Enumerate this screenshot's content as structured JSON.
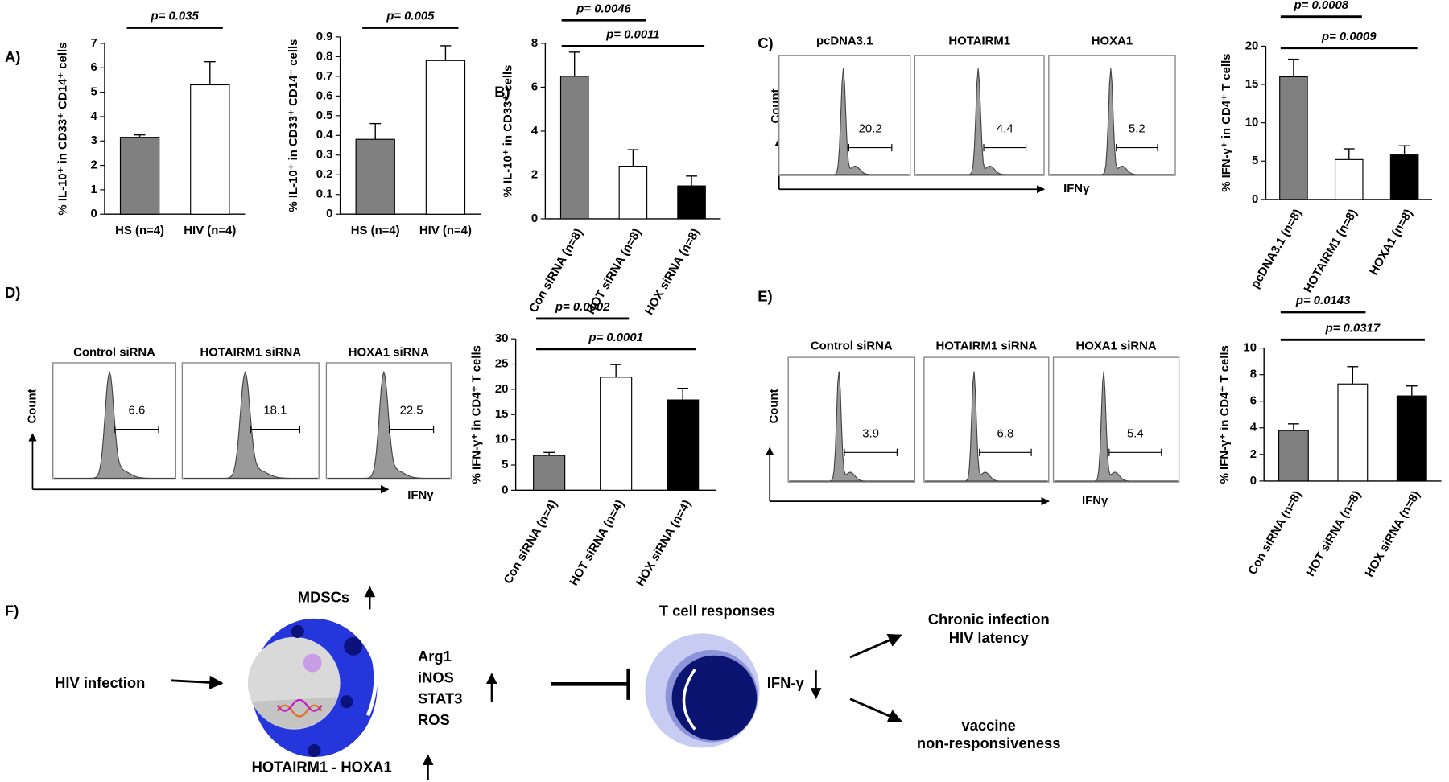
{
  "chart_data": [
    {
      "type": "bar",
      "panel": "A)",
      "ylabel": "% IL-10⁺ in CD33⁺ CD14⁺ cells",
      "categories": [
        "HS (n=4)",
        "HIV (n=4)"
      ],
      "values": [
        3.15,
        5.3
      ],
      "errors": [
        0.1,
        0.95
      ],
      "colors": [
        "#808080",
        "#ffffff"
      ],
      "ylim": [
        0,
        7
      ],
      "yticks": [
        0,
        1,
        2,
        3,
        4,
        5,
        6,
        7
      ],
      "annotations": [
        "p= 0.035"
      ]
    },
    {
      "type": "bar",
      "ylabel": "% IL-10⁺ in CD33⁺ CD14⁻ cells",
      "categories": [
        "HS (n=4)",
        "HIV (n=4)"
      ],
      "values": [
        0.38,
        0.78
      ],
      "errors": [
        0.08,
        0.075
      ],
      "colors": [
        "#808080",
        "#ffffff"
      ],
      "ylim": [
        0,
        0.9
      ],
      "yticks": [
        0,
        0.1,
        0.2,
        0.3,
        0.4,
        0.5,
        0.6,
        0.7,
        0.8,
        0.9
      ],
      "annotations": [
        "p= 0.005"
      ]
    },
    {
      "type": "bar",
      "panel": "B)",
      "ylabel": "% IL-10⁺ in CD33⁺ cells",
      "categories": [
        "Con siRNA (n=8)",
        "HOT siRNA (n=8)",
        "HOX siRNA (n=8)"
      ],
      "values": [
        6.5,
        2.4,
        1.5
      ],
      "errors": [
        1.1,
        0.75,
        0.45
      ],
      "colors": [
        "#808080",
        "#ffffff",
        "#000000"
      ],
      "ylim": [
        0,
        8
      ],
      "yticks": [
        0,
        2,
        4,
        6,
        8
      ],
      "annotations": [
        "p= 0.0046",
        "p= 0.0011"
      ]
    },
    {
      "type": "bar",
      "ylabel": "% IFN-γ⁺ in CD4⁺ T cells",
      "categories": [
        "pcDNA3.1 (n=8)",
        "HOTAIRM1 (n=8)",
        "HOXA1 (n=8)"
      ],
      "values": [
        16,
        5.2,
        5.8
      ],
      "errors": [
        2.3,
        1.4,
        1.2
      ],
      "colors": [
        "#808080",
        "#ffffff",
        "#000000"
      ],
      "ylim": [
        0,
        20
      ],
      "yticks": [
        0,
        5,
        10,
        15,
        20
      ],
      "annotations": [
        "p= 0.0008",
        "p= 0.0009"
      ]
    },
    {
      "type": "bar",
      "ylabel": "% IFN-γ⁺ in CD4⁺ T cells",
      "categories": [
        "Con siRNA (n=4)",
        "HOT siRNA (n=4)",
        "HOX siRNA (n=4)"
      ],
      "values": [
        6.9,
        22.4,
        17.9
      ],
      "errors": [
        0.6,
        2.5,
        2.3
      ],
      "colors": [
        "#808080",
        "#ffffff",
        "#000000"
      ],
      "ylim": [
        0,
        30
      ],
      "yticks": [
        0,
        5,
        10,
        15,
        20,
        25,
        30
      ],
      "annotations": [
        "p= 0.0002",
        "p= 0.0001"
      ]
    },
    {
      "type": "bar",
      "ylabel": "% IFN-γ⁺ in CD4⁺ T cells",
      "categories": [
        "Con siRNA (n=8)",
        "HOT siRNA (n=8)",
        "HOX siRNA (n=8)"
      ],
      "values": [
        3.8,
        7.3,
        6.4
      ],
      "errors": [
        0.5,
        1.3,
        0.75
      ],
      "colors": [
        "#808080",
        "#ffffff",
        "#000000"
      ],
      "ylim": [
        0,
        10
      ],
      "yticks": [
        0,
        2,
        4,
        6,
        8,
        10
      ],
      "annotations": [
        "p= 0.0143",
        "p= 0.0317"
      ]
    }
  ],
  "flow_panels": [
    {
      "panel": "C)",
      "ylabel": "Count",
      "xlabel": "IFNγ",
      "samples": [
        "pcDNA3.1",
        "HOTAIRM1",
        "HOXA1"
      ],
      "values": [
        20.2,
        4.4,
        5.2
      ]
    },
    {
      "panel": "D)",
      "ylabel": "Count",
      "xlabel": "IFNγ",
      "samples": [
        "Control siRNA",
        "HOTAIRM1 siRNA",
        "HOXA1 siRNA"
      ],
      "values": [
        6.6,
        18.1,
        22.5
      ]
    },
    {
      "panel": "E)",
      "ylabel": "Count",
      "xlabel": "IFNγ",
      "samples": [
        "Control siRNA",
        "HOTAIRM1 siRNA",
        "HOXA1 siRNA"
      ],
      "values": [
        3.9,
        6.8,
        5.4
      ]
    }
  ],
  "diagram": {
    "panel": "F)",
    "stimulus": "HIV infection",
    "cell": "MDSCs",
    "regulator": "HOTAIRM1 - HOXA1",
    "mediators": [
      "Arg1",
      "iNOS",
      "STAT3",
      "ROS"
    ],
    "target": "T cell responses",
    "cytokine": "IFN-γ",
    "outcomes": [
      [
        "Chronic infection",
        "HIV latency"
      ],
      [
        "vaccine",
        "non-responsiveness"
      ]
    ]
  }
}
